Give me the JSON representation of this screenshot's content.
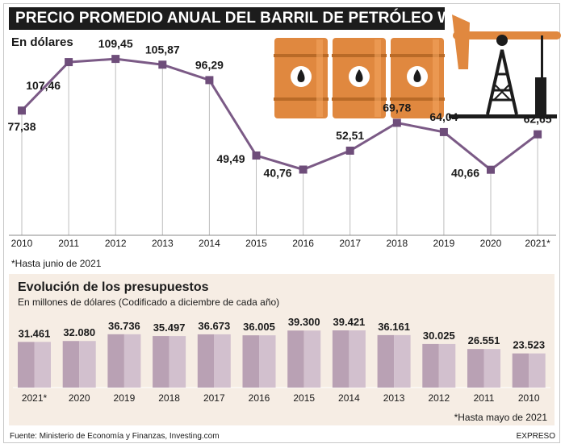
{
  "title": "PRECIO PROMEDIO ANUAL DEL BARRIL DE PETRÓLEO WTI",
  "top_chart": {
    "subtitle": "En dólares",
    "footnote": "*Hasta junio de 2021",
    "icons": [
      "oil-barrel-icon",
      "oil-barrel-icon",
      "oil-barrel-icon",
      "oil-pump-jack-icon"
    ],
    "colors": {
      "line": "#7b5a86",
      "marker": "#6e4d7a",
      "gridline": "#bdbdbd",
      "barrel": "#e0883f",
      "header": "#1c1c1c"
    }
  },
  "bottom_chart": {
    "subtitle": "Evolución de los presupuestos",
    "unit": "En millones de dólares (Codificado a diciembre de cada año)",
    "footnote": "*Hasta mayo de 2021",
    "colors": {
      "bar_left": "#b9a1b4",
      "bar_right": "#d2c0ce",
      "panel": "#f6ede4"
    }
  },
  "source": "Fuente: Ministerio de Economía y Finanzas, Investing.com",
  "brand": "EXPRESO",
  "chart_data": [
    {
      "type": "line",
      "title": "PRECIO PROMEDIO ANUAL DEL BARRIL DE PETRÓLEO WTI",
      "ylabel": "En dólares",
      "categories": [
        "2010",
        "2011",
        "2012",
        "2013",
        "2014",
        "2015",
        "2016",
        "2017",
        "2018",
        "2019",
        "2020",
        "2021*"
      ],
      "values": [
        77.38,
        107.46,
        109.45,
        105.87,
        96.29,
        49.49,
        40.76,
        52.51,
        69.78,
        64.04,
        40.66,
        62.65
      ],
      "value_labels": [
        "77,38",
        "107,46",
        "109,45",
        "105,87",
        "96,29",
        "49,49",
        "40,76",
        "52,51",
        "69,78",
        "64,04",
        "40,66",
        "62,65"
      ],
      "grid": "vertical"
    },
    {
      "type": "bar",
      "title": "Evolución de los presupuestos",
      "ylabel": "En millones de dólares (Codificado a diciembre de cada año)",
      "categories": [
        "2021*",
        "2020",
        "2019",
        "2018",
        "2017",
        "2016",
        "2015",
        "2014",
        "2013",
        "2012",
        "2011",
        "2010"
      ],
      "values": [
        31461,
        32080,
        36736,
        35497,
        36673,
        36005,
        39300,
        39421,
        36161,
        30025,
        26551,
        23523
      ],
      "value_labels": [
        "31.461",
        "32.080",
        "36.736",
        "35.497",
        "36.673",
        "36.005",
        "39.300",
        "39.421",
        "36.161",
        "30.025",
        "26.551",
        "23.523"
      ]
    }
  ]
}
